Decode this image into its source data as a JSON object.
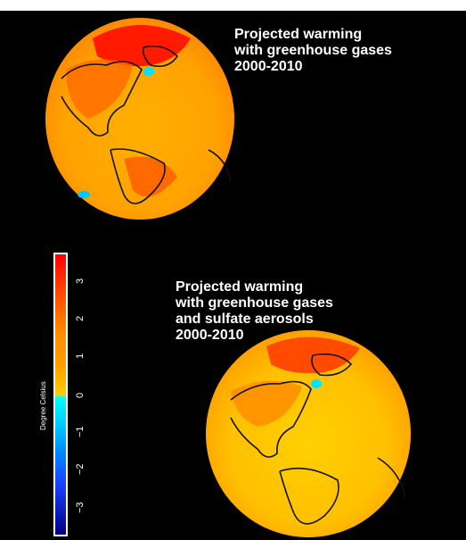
{
  "map": {
    "panels": [
      {
        "title": "Projected warming\nwith greenhouse gases\n2000-2010"
      },
      {
        "title": "Projected warming\nwith greenhouse gases\nand sulfate aerosols\n2000-2010"
      }
    ],
    "colorbar": {
      "label": "Degree Celsius",
      "ticks": [
        "3",
        "2",
        "1",
        "0",
        "−1",
        "−2",
        "−3"
      ],
      "range": [
        -3,
        3
      ],
      "colors": [
        "#ff0000",
        "#ff8c00",
        "#ffcc00",
        "#00ffff",
        "#008cff",
        "#000080"
      ]
    }
  }
}
